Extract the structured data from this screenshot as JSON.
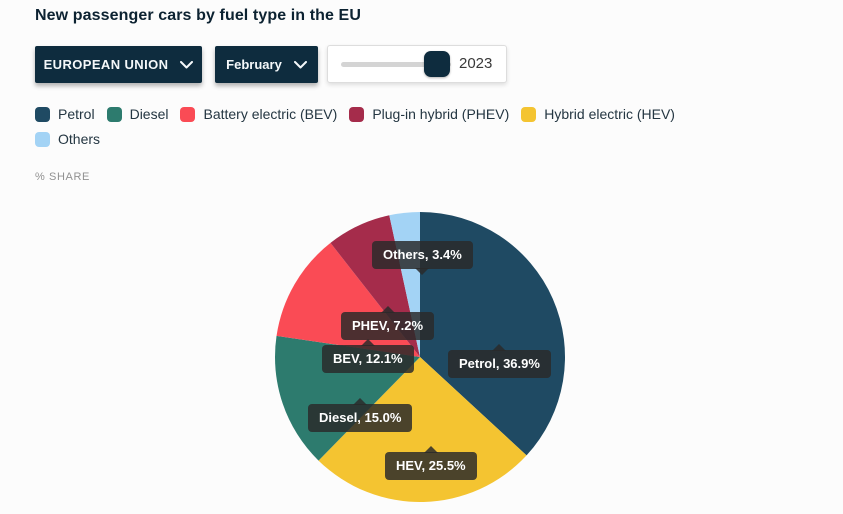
{
  "header": {
    "title": "New passenger cars by fuel type in the EU"
  },
  "theme": {
    "primary": "#0E2C3E"
  },
  "controls": {
    "region_dropdown": {
      "label": "EUROPEAN UNION"
    },
    "month_dropdown": {
      "label": "February"
    },
    "year_slider": {
      "value": "2023"
    }
  },
  "chart_data": {
    "type": "pie",
    "title": "New passenger cars by fuel type in the EU",
    "unit_label": "% SHARE",
    "legend_position": "top",
    "legend": [
      {
        "id": "petrol",
        "label": "Petrol",
        "color": "#1F4A63"
      },
      {
        "id": "diesel",
        "label": "Diesel",
        "color": "#2D7B6E"
      },
      {
        "id": "bev",
        "label": "Battery electric (BEV)",
        "color": "#FA4B55"
      },
      {
        "id": "phev",
        "label": "Plug-in hybrid (PHEV)",
        "color": "#A52C4B"
      },
      {
        "id": "hev",
        "label": "Hybrid electric (HEV)",
        "color": "#F4C431"
      },
      {
        "id": "others",
        "label": "Others",
        "color": "#A3D3F5"
      }
    ],
    "start_angle_deg": 0,
    "direction": "clockwise",
    "slices": [
      {
        "id": "petrol",
        "label": "Petrol",
        "value": 36.9,
        "color": "#1F4A63",
        "callout": "Petrol, 36.9%"
      },
      {
        "id": "hev",
        "label": "Hybrid electric (HEV)",
        "value": 25.5,
        "color": "#F4C431",
        "callout": "HEV, 25.5%"
      },
      {
        "id": "diesel",
        "label": "Diesel",
        "value": 15.0,
        "color": "#2D7B6E",
        "callout": "Diesel, 15.0%"
      },
      {
        "id": "bev",
        "label": "Battery electric (BEV)",
        "value": 12.1,
        "color": "#FA4B55",
        "callout": "BEV, 12.1%"
      },
      {
        "id": "phev",
        "label": "Plug-in hybrid (PHEV)",
        "value": 7.2,
        "color": "#A52C4B",
        "callout": "PHEV, 7.2%"
      },
      {
        "id": "others",
        "label": "Others",
        "value": 3.4,
        "color": "#A3D3F5",
        "callout": "Others, 3.4%"
      }
    ]
  }
}
